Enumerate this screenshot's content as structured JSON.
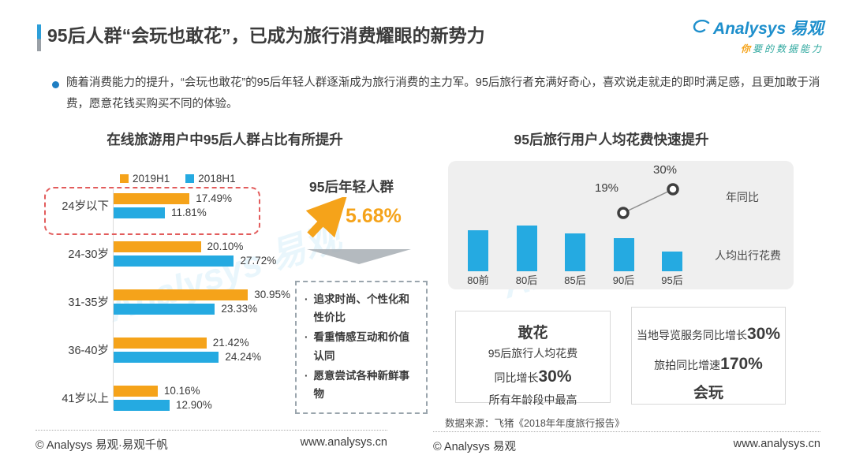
{
  "colors": {
    "orange": "#F5A31A",
    "blue": "#25AAE1",
    "red_dashed": "#E25C5C",
    "panel_gray": "#EFEFEF",
    "logo_blue": "#1E8FCC",
    "logo_teal": "#2FA89F"
  },
  "header": {
    "title": "95后人群“会玩也敢花”，已成为旅行消费耀眼的新势力",
    "logo_brand": "Analysys 易观",
    "logo_tagline_first": "你",
    "logo_tagline_rest": "要的数据能力"
  },
  "intro": "随着消费能力的提升，“会玩也敢花”的95后年轻人群逐渐成为旅行消费的主力军。95后旅行者充满好奇心，喜欢说走就走的即时满足感，且更加敢于消费，愿意花钱买购买不同的体验。",
  "left_section": {
    "chart_title": "在线旅游用户中95后人群占比有所提升",
    "highlight_label": "95后年轻人群",
    "highlight_value": "5.68%",
    "traits": [
      "追求时尚、个性化和性价比",
      "看重情感互动和价值认同",
      "愿意尝试各种新鲜事物"
    ]
  },
  "right_section": {
    "chart_title": "95后旅行用户人均花费快速提升",
    "line_series_label": "年同比",
    "bar_series_label": "人均出行花费",
    "gan_hua_box": {
      "title": "敢花",
      "line1": "95后旅行人均花费",
      "line2_text": "同比增长",
      "line2_value": "30%",
      "line3": "所有年龄段中最高"
    },
    "hui_wan_box": {
      "line1_text": "当地导览服务同比增长",
      "line1_value": "30%",
      "line2_text": "旅拍同比增速",
      "line2_value": "170%",
      "title": "会玩"
    },
    "source": "数据来源：飞猪《2018年年度旅行报告》"
  },
  "chart_data": [
    {
      "type": "bar",
      "orientation": "horizontal",
      "title": "在线旅游用户中95后人群占比有所提升",
      "categories": [
        "24岁以下",
        "24-30岁",
        "31-35岁",
        "36-40岁",
        "41岁以上"
      ],
      "series": [
        {
          "name": "2019H1",
          "color": "#F5A31A",
          "values": [
            17.49,
            20.1,
            30.95,
            21.42,
            10.16
          ]
        },
        {
          "name": "2018H1",
          "color": "#25AAE1",
          "values": [
            11.81,
            27.72,
            23.33,
            24.24,
            12.9
          ]
        }
      ],
      "unit": "%",
      "legend_position": "top",
      "highlighted_category": "24岁以下",
      "annotation": {
        "label": "95后年轻人群",
        "value": "5.68%"
      }
    },
    {
      "type": "bar",
      "title": "95后旅行用户人均花费快速提升",
      "categories": [
        "80前",
        "80后",
        "85后",
        "90后",
        "95后"
      ],
      "series": [
        {
          "name": "人均出行花费",
          "color": "#25AAE1",
          "values_relative": [
            90,
            100,
            83,
            72,
            43
          ]
        }
      ],
      "line": {
        "name": "年同比",
        "points": [
          {
            "category": "90后",
            "value": 19,
            "label": "19%"
          },
          {
            "category": "95后",
            "value": 30,
            "label": "30%"
          }
        ]
      }
    }
  ],
  "footer_left": {
    "copyright": "© Analysys 易观·易观千帆",
    "site": "www.analysys.cn"
  },
  "footer_right": {
    "copyright": "© Analysys 易观",
    "site": "www.analysys.cn"
  },
  "watermark": "Analysys 易观"
}
